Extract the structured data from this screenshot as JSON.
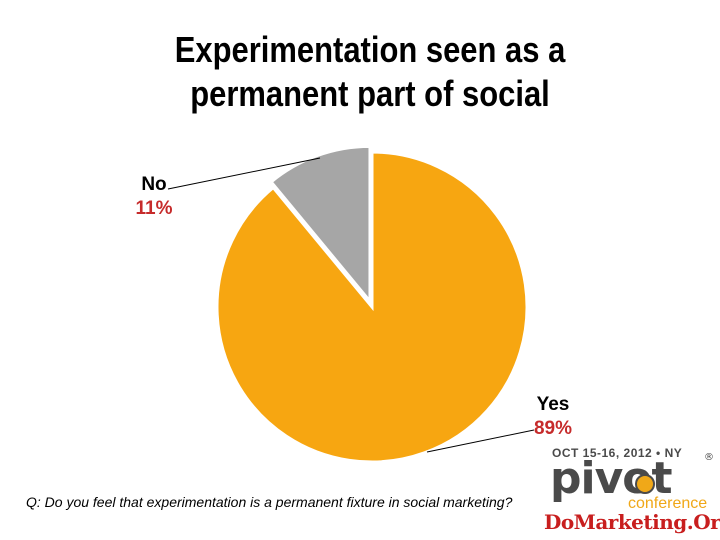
{
  "chart_data": {
    "type": "pie",
    "title_lines": [
      "Experimentation seen as a",
      "permanent part of social"
    ],
    "slices": [
      {
        "label": "Yes",
        "value": 89,
        "value_label": "89%",
        "color": "#F7A611"
      },
      {
        "label": "No",
        "value": 11,
        "value_label": "11%",
        "color": "#A6A6A6"
      }
    ],
    "label_color": "#000000",
    "value_label_color": "#C62B2B",
    "legend": "none"
  },
  "question": "Q: Do you feel that experimentation is a permanent fixture in social marketing?",
  "logo": {
    "date": "OCT 15-16, 2012 • NY",
    "word": "pivot",
    "registered": "®",
    "conference": "conference",
    "site": "DoMarketing.Org"
  }
}
